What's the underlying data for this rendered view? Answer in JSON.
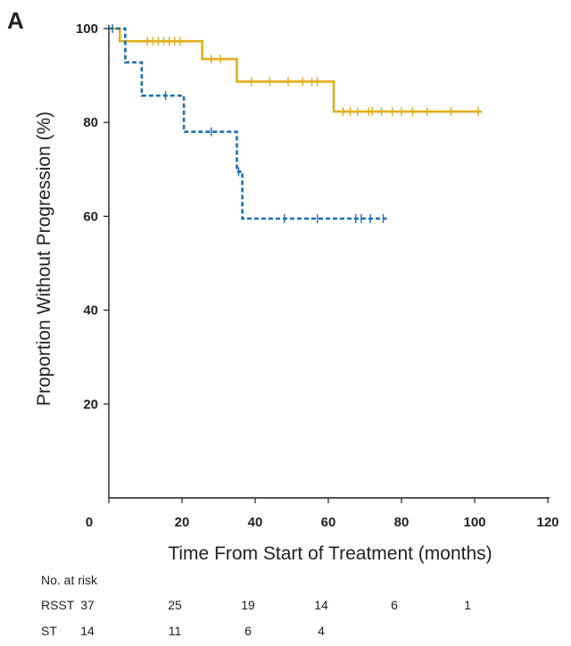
{
  "panel_label": "A",
  "chart_data": {
    "type": "line",
    "title": "",
    "xlabel": "Time From Start of Treatment (months)",
    "ylabel": "Proportion Without Progression (%)",
    "xlim": [
      0,
      120
    ],
    "ylim": [
      0,
      100
    ],
    "x_ticks": [
      0,
      20,
      40,
      60,
      80,
      100,
      120
    ],
    "y_ticks": [
      20,
      40,
      60,
      80,
      100
    ],
    "grid": false,
    "series": [
      {
        "name": "RSST",
        "color": "#e3ae1b",
        "style": "solid",
        "steps": [
          [
            0,
            100
          ],
          [
            3,
            100
          ],
          [
            3,
            97.3
          ],
          [
            25.5,
            97.3
          ],
          [
            25.5,
            93.5
          ],
          [
            35,
            93.5
          ],
          [
            35,
            88.7
          ],
          [
            61.5,
            88.7
          ],
          [
            61.5,
            82.3
          ],
          [
            102,
            82.3
          ]
        ],
        "censored": [
          [
            10.5,
            97.3
          ],
          [
            12,
            97.3
          ],
          [
            13.5,
            97.3
          ],
          [
            15,
            97.3
          ],
          [
            16.5,
            97.3
          ],
          [
            18,
            97.3
          ],
          [
            19.5,
            97.3
          ],
          [
            28,
            93.5
          ],
          [
            30.5,
            93.5
          ],
          [
            39,
            88.7
          ],
          [
            44,
            88.7
          ],
          [
            49,
            88.7
          ],
          [
            53,
            88.7
          ],
          [
            55.5,
            88.7
          ],
          [
            57,
            88.7
          ],
          [
            64,
            82.3
          ],
          [
            66,
            82.3
          ],
          [
            68,
            82.3
          ],
          [
            71,
            82.3
          ],
          [
            72,
            82.3
          ],
          [
            74.5,
            82.3
          ],
          [
            77.5,
            82.3
          ],
          [
            80,
            82.3
          ],
          [
            83,
            82.3
          ],
          [
            87,
            82.3
          ],
          [
            93.5,
            82.3
          ],
          [
            101,
            82.3
          ]
        ]
      },
      {
        "name": "ST",
        "color": "#1f6fb5",
        "style": "dashed",
        "steps": [
          [
            0,
            100
          ],
          [
            4.5,
            100
          ],
          [
            4.5,
            92.8
          ],
          [
            9,
            92.8
          ],
          [
            9,
            85.7
          ],
          [
            20.5,
            85.7
          ],
          [
            20.5,
            78.0
          ],
          [
            35,
            78.0
          ],
          [
            35,
            69.5
          ],
          [
            36.5,
            69.5
          ],
          [
            36.5,
            59.5
          ],
          [
            76,
            59.5
          ]
        ],
        "censored": [
          [
            1,
            100
          ],
          [
            15.5,
            85.7
          ],
          [
            28,
            78.0
          ],
          [
            35.5,
            69.5
          ],
          [
            48,
            59.5
          ],
          [
            57,
            59.5
          ],
          [
            67.5,
            59.5
          ],
          [
            69,
            59.5
          ],
          [
            71.5,
            59.5
          ],
          [
            75,
            59.5
          ]
        ]
      }
    ]
  },
  "risk_table": {
    "header": "No. at risk",
    "time_points": [
      0,
      20,
      40,
      60,
      80,
      100
    ],
    "rows": [
      {
        "label": "RSST",
        "counts": [
          "37",
          "25",
          "19",
          "14",
          "6",
          "1"
        ]
      },
      {
        "label": "ST",
        "counts": [
          "14",
          "11",
          "6",
          "4"
        ]
      }
    ]
  }
}
